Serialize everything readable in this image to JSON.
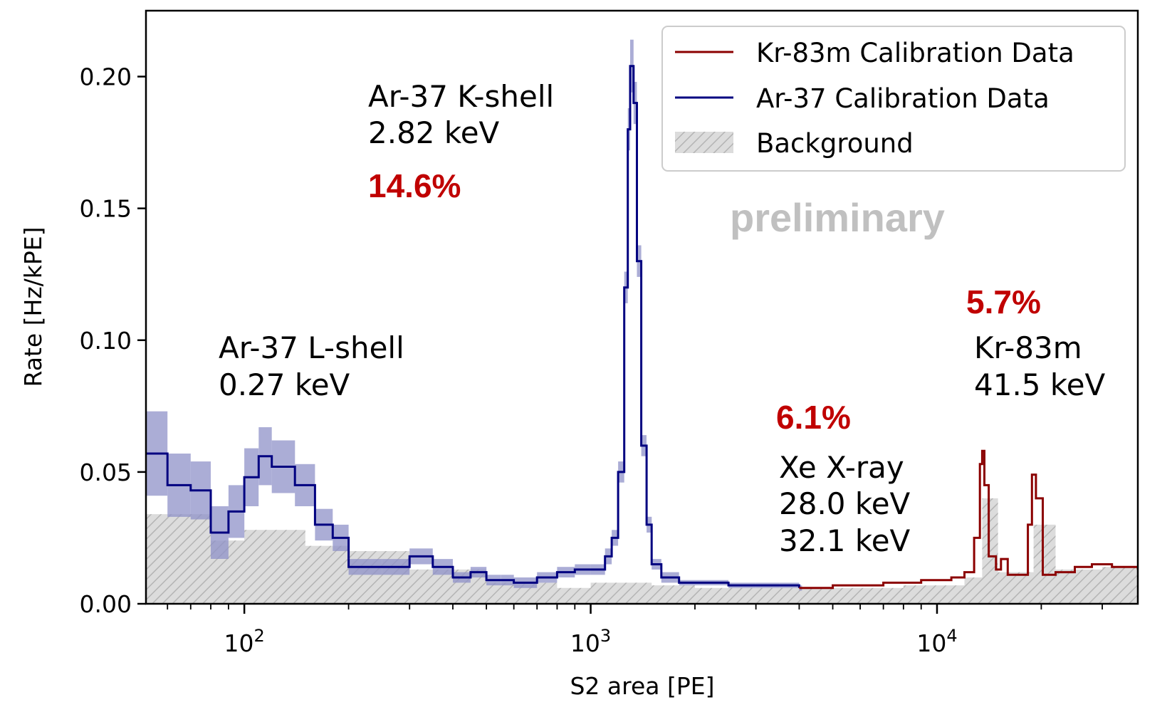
{
  "chart_data": {
    "type": "line",
    "title": "",
    "xlabel": "S2 area [PE]",
    "ylabel": "Rate [Hz/kPE]",
    "xscale": "log",
    "xlim": [
      52,
      38000
    ],
    "ylim": [
      0,
      0.225
    ],
    "yticks": [
      0.0,
      0.05,
      0.1,
      0.15,
      0.2
    ],
    "ytick_labels": [
      "0.00",
      "0.05",
      "0.10",
      "0.15",
      "0.20"
    ],
    "xtick_base": "10",
    "xticks": [
      {
        "value": 100,
        "exp": "2"
      },
      {
        "value": 1000,
        "exp": "3"
      },
      {
        "value": 10000,
        "exp": "4"
      }
    ],
    "grid": false,
    "legend": {
      "position": "top-right",
      "entries": [
        {
          "label": "Kr-83m Calibration Data",
          "color": "#8b0000",
          "kind": "line"
        },
        {
          "label": "Ar-37 Calibration Data",
          "color": "#000080",
          "kind": "line"
        },
        {
          "label": "Background",
          "color": "#b0b0b0",
          "kind": "hatch"
        }
      ]
    },
    "series": [
      {
        "name": "Ar-37 Calibration Data",
        "color": "#000080",
        "band_color": "#8f92c8",
        "x": [
          52,
          60,
          70,
          80,
          90,
          100,
          110,
          120,
          140,
          160,
          180,
          200,
          250,
          300,
          350,
          400,
          450,
          500,
          550,
          600,
          700,
          800,
          900,
          1000,
          1100,
          1150,
          1200,
          1250,
          1280,
          1300,
          1330,
          1360,
          1400,
          1450,
          1500,
          1600,
          1800,
          2000,
          2500,
          3000,
          3500,
          4000
        ],
        "y": [
          0.057,
          0.045,
          0.043,
          0.027,
          0.035,
          0.048,
          0.056,
          0.052,
          0.045,
          0.03,
          0.025,
          0.014,
          0.014,
          0.018,
          0.014,
          0.01,
          0.012,
          0.009,
          0.009,
          0.008,
          0.01,
          0.012,
          0.013,
          0.013,
          0.018,
          0.025,
          0.05,
          0.12,
          0.18,
          0.204,
          0.19,
          0.13,
          0.06,
          0.03,
          0.015,
          0.01,
          0.008,
          0.008,
          0.007,
          0.007,
          0.007,
          0.006
        ],
        "y_err": [
          0.016,
          0.012,
          0.011,
          0.01,
          0.01,
          0.011,
          0.011,
          0.01,
          0.008,
          0.006,
          0.005,
          0.003,
          0.003,
          0.003,
          0.003,
          0.002,
          0.002,
          0.002,
          0.002,
          0.002,
          0.002,
          0.002,
          0.002,
          0.002,
          0.003,
          0.003,
          0.004,
          0.006,
          0.008,
          0.01,
          0.008,
          0.006,
          0.004,
          0.003,
          0.002,
          0.002,
          0.001,
          0.001,
          0.001,
          0.001,
          0.001,
          0.001
        ]
      },
      {
        "name": "Kr-83m Calibration Data",
        "color": "#8b0000",
        "x": [
          4000,
          5000,
          6000,
          7000,
          8000,
          9000,
          10000,
          11000,
          12000,
          12800,
          13300,
          13500,
          13700,
          14100,
          14800,
          15300,
          16000,
          17000,
          18300,
          18800,
          19300,
          20200,
          22000,
          25000,
          28000,
          32000,
          38000
        ],
        "y": [
          0.006,
          0.007,
          0.007,
          0.008,
          0.008,
          0.009,
          0.009,
          0.01,
          0.012,
          0.025,
          0.053,
          0.058,
          0.045,
          0.018,
          0.013,
          0.017,
          0.011,
          0.011,
          0.03,
          0.049,
          0.04,
          0.011,
          0.012,
          0.014,
          0.015,
          0.014,
          0.013
        ]
      },
      {
        "name": "Background",
        "color": "#d3d3d3",
        "x": [
          52,
          80,
          100,
          150,
          200,
          300,
          500,
          800,
          1000,
          1500,
          2000,
          4000,
          8000,
          12000,
          13500,
          15000,
          19000,
          22000,
          30000,
          38000
        ],
        "y": [
          0.034,
          0.024,
          0.028,
          0.022,
          0.02,
          0.013,
          0.008,
          0.006,
          0.008,
          0.007,
          0.006,
          0.006,
          0.007,
          0.01,
          0.04,
          0.012,
          0.03,
          0.013,
          0.014,
          0.013
        ]
      }
    ],
    "annotations": [
      {
        "lines": [
          "Ar-37 K-shell",
          "2.82 keV"
        ],
        "percent": "14.6%"
      },
      {
        "lines": [
          "Ar-37 L-shell",
          "0.27 keV"
        ]
      },
      {
        "lines": [
          "Xe X-ray",
          "28.0 keV",
          "32.1 keV"
        ],
        "percent": "6.1%"
      },
      {
        "lines": [
          "Kr-83m",
          "41.5 keV"
        ],
        "percent": "5.7%"
      }
    ],
    "percent_color": "#c00000",
    "watermark": {
      "text": "preliminary",
      "color": "#c0c0c0"
    }
  }
}
